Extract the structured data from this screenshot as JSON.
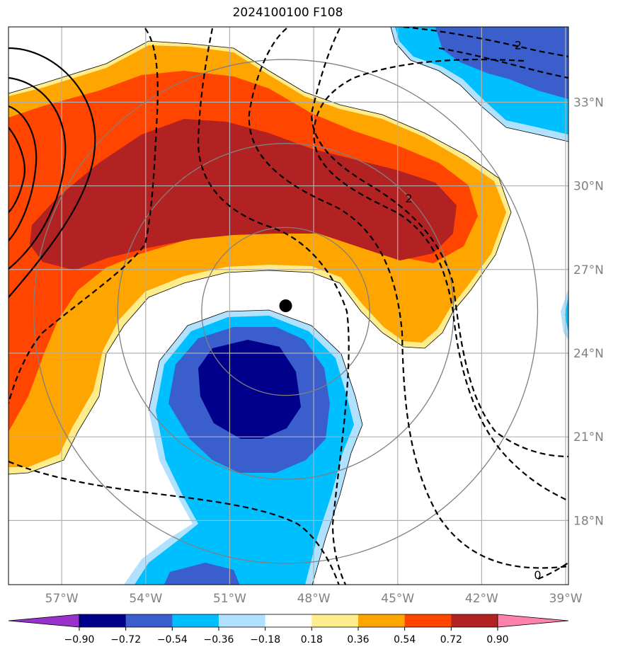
{
  "title": "2024100100 F108",
  "map": {
    "projection": "cylindrical",
    "lon_range": [
      -58.9,
      -38.9
    ],
    "lat_range": [
      15.7,
      35.7
    ],
    "lon_ticks": [
      {
        "value": -57,
        "label": "57°W"
      },
      {
        "value": -54,
        "label": "54°W"
      },
      {
        "value": -51,
        "label": "51°W"
      },
      {
        "value": -48,
        "label": "48°W"
      },
      {
        "value": -45,
        "label": "45°W"
      },
      {
        "value": -42,
        "label": "42°W"
      },
      {
        "value": -39,
        "label": "39°W"
      }
    ],
    "lat_ticks": [
      {
        "value": 33,
        "label": "33°N"
      },
      {
        "value": 30,
        "label": "30°N"
      },
      {
        "value": 27,
        "label": "27°N"
      },
      {
        "value": 24,
        "label": "24°N"
      },
      {
        "value": 21,
        "label": "21°N"
      },
      {
        "value": 18,
        "label": "18°N"
      }
    ],
    "gridlines": true,
    "storm_center": {
      "lon": -49.0,
      "lat": 25.7
    },
    "range_rings_deg": [
      3,
      6,
      9
    ]
  },
  "contour_labels": [
    {
      "text": "2",
      "lon": -40.7,
      "lat": 34.9
    },
    {
      "text": "2",
      "lon": -44.6,
      "lat": 29.4
    },
    {
      "text": "0",
      "lon": -40.0,
      "lat": 15.9
    }
  ],
  "colorbar": {
    "levels": [
      "−0.90",
      "−0.72",
      "−0.54",
      "−0.36",
      "−0.18",
      "0.18",
      "0.36",
      "0.54",
      "0.72",
      "0.90"
    ],
    "colors": [
      "#9932cc",
      "#00008b",
      "#3a5fcd",
      "#00bfff",
      "#b0e2ff",
      "#ffffff",
      "#ffec8b",
      "#ffa500",
      "#ff4500",
      "#b22222",
      "#ff82ab"
    ],
    "extend": "both"
  }
}
